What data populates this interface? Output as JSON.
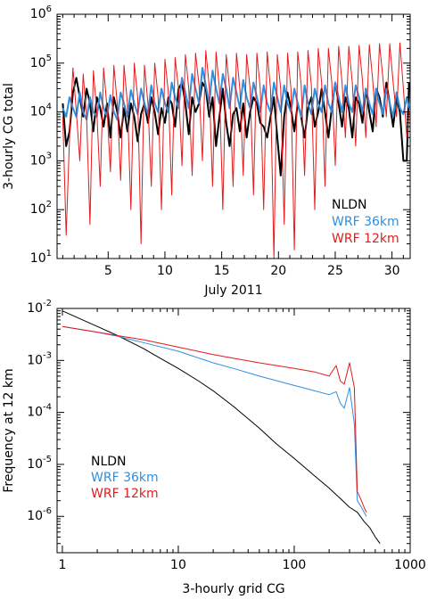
{
  "chart_data": [
    {
      "type": "line",
      "xlabel": "July 2011",
      "ylabel": "3-hourly CG total",
      "xlim": [
        0.5,
        31.6
      ],
      "ylim": [
        10,
        1000000
      ],
      "yscale": "log",
      "grid": false,
      "legend_position": "bottom-right",
      "x_ticks": [
        5,
        10,
        15,
        20,
        25,
        30
      ],
      "x_tick_labels": [
        "5",
        "10",
        "15",
        "20",
        "25",
        "30"
      ],
      "y_tick_labels": [
        "10^1",
        "10^2",
        "10^3",
        "10^4",
        "10^5",
        "10^6"
      ],
      "y_tick_exponents": [
        "1",
        "2",
        "3",
        "4",
        "5",
        "6"
      ],
      "series": [
        {
          "name": "NLDN",
          "color": "#000000",
          "width": 2.0,
          "x": [
            1.0,
            1.3,
            1.6,
            1.9,
            2.2,
            2.5,
            2.8,
            3.1,
            3.4,
            3.7,
            4.0,
            4.3,
            4.6,
            4.9,
            5.2,
            5.5,
            5.8,
            6.1,
            6.4,
            6.7,
            7.0,
            7.3,
            7.6,
            7.9,
            8.2,
            8.5,
            8.8,
            9.1,
            9.4,
            9.7,
            10.0,
            10.3,
            10.6,
            10.9,
            11.2,
            11.5,
            11.8,
            12.1,
            12.4,
            12.7,
            13.0,
            13.3,
            13.6,
            13.9,
            14.2,
            14.5,
            14.8,
            15.1,
            15.4,
            15.7,
            16.0,
            16.3,
            16.6,
            16.9,
            17.2,
            17.5,
            17.8,
            18.1,
            18.4,
            18.7,
            19.0,
            19.3,
            19.6,
            19.9,
            20.2,
            20.5,
            20.8,
            21.1,
            21.4,
            21.7,
            22.0,
            22.3,
            22.6,
            22.9,
            23.2,
            23.5,
            23.8,
            24.1,
            24.4,
            24.7,
            25.0,
            25.3,
            25.6,
            25.9,
            26.2,
            26.5,
            26.8,
            27.1,
            27.4,
            27.7,
            28.0,
            28.3,
            28.6,
            28.9,
            29.2,
            29.5,
            29.8,
            30.1,
            30.4,
            30.7,
            31.0,
            31.3,
            31.5
          ],
          "y": [
            15000.0,
            2000.0,
            4000.0,
            25000.0,
            50000.0,
            20000.0,
            8000.0,
            30000.0,
            15000.0,
            4000.0,
            20000.0,
            12000.0,
            5000.0,
            15000.0,
            3000.0,
            20000.0,
            10000.0,
            3000.0,
            12000.0,
            4000.0,
            15000.0,
            8000.0,
            2500.0,
            9000.0,
            15000.0,
            6000.0,
            20000.0,
            10000.0,
            3500.0,
            12000.0,
            6000.0,
            20000.0,
            15000.0,
            5000.0,
            30000.0,
            40000.0,
            15000.0,
            3500.0,
            20000.0,
            10000.0,
            15000.0,
            40000.0,
            30000.0,
            8000.0,
            20000.0,
            2000.0,
            8000.0,
            30000.0,
            6000.0,
            2000.0,
            9000.0,
            12000.0,
            4000.0,
            15000.0,
            3000.0,
            10000.0,
            20000.0,
            15000.0,
            6000.0,
            5000.0,
            3000.0,
            8000.0,
            20000.0,
            3000.0,
            500.0,
            8000.0,
            25000.0,
            12000.0,
            4000.0,
            15000.0,
            8000.0,
            3000.0,
            12000.0,
            20000.0,
            5000.0,
            10000.0,
            30000.0,
            10000.0,
            3000.0,
            12000.0,
            40000.0,
            15000.0,
            5000.0,
            20000.0,
            12000.0,
            3000.0,
            20000.0,
            15000.0,
            6000.0,
            30000.0,
            10000.0,
            4000.0,
            30000.0,
            20000.0,
            8000.0,
            40000.0,
            15000.0,
            5000.0,
            20000.0,
            10000.0,
            1000.0,
            1000.0,
            40000.0
          ]
        },
        {
          "name": "WRF  36km",
          "color": "#2f8fe0",
          "width": 2.0,
          "x": [
            1.0,
            1.3,
            1.6,
            1.9,
            2.2,
            2.5,
            2.8,
            3.1,
            3.4,
            3.7,
            4.0,
            4.3,
            4.6,
            4.9,
            5.2,
            5.5,
            5.8,
            6.1,
            6.4,
            6.7,
            7.0,
            7.3,
            7.6,
            7.9,
            8.2,
            8.5,
            8.8,
            9.1,
            9.4,
            9.7,
            10.0,
            10.3,
            10.6,
            10.9,
            11.2,
            11.5,
            11.8,
            12.1,
            12.4,
            12.7,
            13.0,
            13.3,
            13.6,
            13.9,
            14.2,
            14.5,
            14.8,
            15.1,
            15.4,
            15.7,
            16.0,
            16.3,
            16.6,
            16.9,
            17.2,
            17.5,
            17.8,
            18.1,
            18.4,
            18.7,
            19.0,
            19.3,
            19.6,
            19.9,
            20.2,
            20.5,
            20.8,
            21.1,
            21.4,
            21.7,
            22.0,
            22.3,
            22.6,
            22.9,
            23.2,
            23.5,
            23.8,
            24.1,
            24.4,
            24.7,
            25.0,
            25.3,
            25.6,
            25.9,
            26.2,
            26.5,
            26.8,
            27.1,
            27.4,
            27.7,
            28.0,
            28.3,
            28.6,
            28.9,
            29.2,
            29.5,
            29.8,
            30.1,
            30.4,
            30.7,
            31.0,
            31.3,
            31.5
          ],
          "y": [
            12000.0,
            8000.0,
            20000.0,
            12000.0,
            8000.0,
            25000.0,
            10000.0,
            7000.0,
            20000.0,
            10000.0,
            8000.0,
            25000.0,
            12000.0,
            8000.0,
            22000.0,
            10000.0,
            7000.0,
            25000.0,
            15000.0,
            8000.0,
            28000.0,
            15000.0,
            9000.0,
            30000.0,
            15000.0,
            9000.0,
            35000.0,
            15000.0,
            10000.0,
            30000.0,
            15000.0,
            10000.0,
            40000.0,
            20000.0,
            12000.0,
            50000.0,
            25000.0,
            12000.0,
            60000.0,
            30000.0,
            15000.0,
            80000.0,
            35000.0,
            15000.0,
            70000.0,
            30000.0,
            15000.0,
            60000.0,
            30000.0,
            12000.0,
            50000.0,
            25000.0,
            12000.0,
            45000.0,
            20000.0,
            12000.0,
            40000.0,
            20000.0,
            10000.0,
            35000.0,
            15000.0,
            10000.0,
            40000.0,
            20000.0,
            10000.0,
            35000.0,
            15000.0,
            10000.0,
            30000.0,
            15000.0,
            8000.0,
            35000.0,
            15000.0,
            9000.0,
            30000.0,
            15000.0,
            10000.0,
            35000.0,
            15000.0,
            10000.0,
            40000.0,
            20000.0,
            10000.0,
            35000.0,
            15000.0,
            10000.0,
            35000.0,
            20000.0,
            10000.0,
            30000.0,
            15000.0,
            9000.0,
            30000.0,
            15000.0,
            9000.0,
            30000.0,
            15000.0,
            8000.0,
            25000.0,
            12000.0,
            9000.0,
            20000.0,
            12000.0
          ]
        },
        {
          "name": "WRF  12km",
          "color": "#e41a1c",
          "width": 1.0,
          "x": [
            1.0,
            1.3,
            1.6,
            1.9,
            2.2,
            2.5,
            2.8,
            3.1,
            3.4,
            3.7,
            4.0,
            4.3,
            4.6,
            4.9,
            5.2,
            5.5,
            5.8,
            6.1,
            6.4,
            6.7,
            7.0,
            7.3,
            7.6,
            7.9,
            8.2,
            8.5,
            8.8,
            9.1,
            9.4,
            9.7,
            10.0,
            10.3,
            10.6,
            10.9,
            11.2,
            11.5,
            11.8,
            12.1,
            12.4,
            12.7,
            13.0,
            13.3,
            13.6,
            13.9,
            14.2,
            14.5,
            14.8,
            15.1,
            15.4,
            15.7,
            16.0,
            16.3,
            16.6,
            16.9,
            17.2,
            17.5,
            17.8,
            18.1,
            18.4,
            18.7,
            19.0,
            19.3,
            19.6,
            19.9,
            20.2,
            20.5,
            20.8,
            21.1,
            21.4,
            21.7,
            22.0,
            22.3,
            22.6,
            22.9,
            23.2,
            23.5,
            23.8,
            24.1,
            24.4,
            24.7,
            25.0,
            25.3,
            25.6,
            25.9,
            26.2,
            26.5,
            26.8,
            27.1,
            27.4,
            27.7,
            28.0,
            28.3,
            28.6,
            28.9,
            29.2,
            29.5,
            29.8,
            30.1,
            30.4,
            30.7,
            31.0,
            31.3,
            31.5
          ],
          "y": [
            8000.0,
            30.0,
            3000.0,
            80000.0,
            10000.0,
            1000.0,
            60000.0,
            8000.0,
            50.0,
            70000.0,
            10000.0,
            300.0,
            80000.0,
            12000.0,
            600.0,
            90000.0,
            15000.0,
            400.0,
            90000.0,
            15000.0,
            100.0,
            100000.0,
            20000.0,
            20.0,
            90000.0,
            15000.0,
            300.0,
            100000.0,
            20000.0,
            100.0,
            120000.0,
            25000.0,
            200.0,
            130000.0,
            30000.0,
            800.0,
            150000.0,
            30000.0,
            500.0,
            160000.0,
            35000.0,
            1000.0,
            180000.0,
            35000.0,
            300.0,
            170000.0,
            30000.0,
            100.0,
            150000.0,
            30000.0,
            300.0,
            160000.0,
            30000.0,
            500.0,
            150000.0,
            30000.0,
            200.0,
            160000.0,
            30000.0,
            100.0,
            170000.0,
            30000.0,
            10.0,
            150000.0,
            30000.0,
            50.0,
            160000.0,
            30000.0,
            15.0,
            170000.0,
            35000.0,
            500.0,
            180000.0,
            35000.0,
            100.0,
            200000.0,
            40000.0,
            300.0,
            200000.0,
            40000.0,
            800.0,
            220000.0,
            40000.0,
            3000.0,
            220000.0,
            40000.0,
            2000.0,
            230000.0,
            45000.0,
            3000.0,
            240000.0,
            45000.0,
            5000.0,
            250000.0,
            50000.0,
            8000.0,
            250000.0,
            40000.0,
            8000.0,
            260000.0,
            30000.0,
            3000.0,
            10000.0
          ]
        }
      ]
    },
    {
      "type": "line",
      "xlabel": "3-hourly grid CG",
      "ylabel": "Frequency at 12 km",
      "xlim": [
        0.9,
        1000
      ],
      "ylim": [
        2e-07,
        0.01
      ],
      "xscale": "log",
      "yscale": "log",
      "grid": false,
      "legend_position": "left",
      "x_ticks": [
        1,
        10,
        100,
        1000
      ],
      "x_tick_labels": [
        "1",
        "10",
        "100",
        "1000"
      ],
      "y_tick_labels": [
        "10^-2",
        "10^-3",
        "10^-4",
        "10^-5",
        "10^-6"
      ],
      "y_tick_exponents": [
        "-2",
        "-3",
        "-4",
        "-5",
        "-6"
      ],
      "series": [
        {
          "name": "NLDN",
          "color": "#000000",
          "width": 1.0,
          "x": [
            1,
            1.5,
            2,
            3,
            5,
            7,
            10,
            15,
            20,
            30,
            50,
            70,
            100,
            150,
            200,
            250,
            300,
            350,
            400,
            450,
            500,
            550
          ],
          "y": [
            0.009,
            0.006,
            0.0045,
            0.003,
            0.0017,
            0.0011,
            0.0007,
            0.0004,
            0.00026,
            0.00013,
            5e-05,
            2.5e-05,
            1.3e-05,
            6e-06,
            3.5e-06,
            2.2e-06,
            1.5e-06,
            1.2e-06,
            8e-07,
            6e-07,
            4e-07,
            3e-07
          ]
        },
        {
          "name": "WRF  36km",
          "color": "#2f8fe0",
          "width": 1.0,
          "x": [
            1,
            2,
            3,
            5,
            10,
            20,
            30,
            50,
            100,
            150,
            200,
            230,
            250,
            270,
            300,
            330,
            350,
            380,
            400,
            420
          ],
          "y": [
            0.0045,
            0.0035,
            0.0029,
            0.0022,
            0.0015,
            0.0009,
            0.0007,
            0.0005,
            0.00033,
            0.00026,
            0.00022,
            0.00025,
            0.00015,
            0.00012,
            0.0003,
            6e-05,
            2e-06,
            1.5e-06,
            1.2e-06,
            1e-06
          ]
        },
        {
          "name": "WRF  12km",
          "color": "#e41a1c",
          "width": 1.0,
          "x": [
            1,
            2,
            3,
            5,
            10,
            20,
            30,
            50,
            100,
            150,
            200,
            230,
            250,
            270,
            300,
            330,
            350,
            380,
            400,
            420
          ],
          "y": [
            0.0045,
            0.0035,
            0.003,
            0.0025,
            0.0018,
            0.0013,
            0.0011,
            0.0009,
            0.0007,
            0.0006,
            0.0005,
            0.0008,
            0.0004,
            0.00035,
            0.0009,
            0.0003,
            3e-06,
            2e-06,
            1.5e-06,
            1.2e-06
          ]
        }
      ]
    }
  ]
}
